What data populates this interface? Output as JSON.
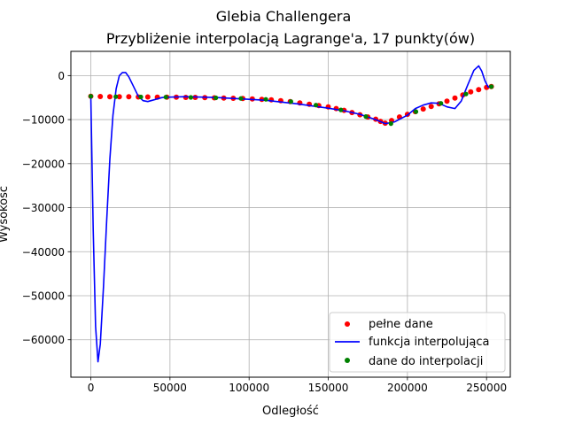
{
  "chart_data": {
    "type": "line",
    "title": "Glebia Challengera",
    "subtitle": "Przybliżenie interpolacją Lagrange'a, 17 punkty(ów)",
    "xlabel": "Odległość",
    "ylabel": "Wysokość",
    "xlim": [
      -12600,
      265000
    ],
    "ylim": [
      -68500,
      5500
    ],
    "x_ticks": [
      0,
      50000,
      100000,
      150000,
      200000,
      250000
    ],
    "x_tick_labels": [
      "0",
      "50000",
      "100000",
      "150000",
      "200000",
      "250000"
    ],
    "y_ticks": [
      0,
      -10000,
      -20000,
      -30000,
      -40000,
      -50000,
      -60000
    ],
    "y_tick_labels": [
      "0",
      "−10000",
      "−20000",
      "−30000",
      "−40000",
      "−50000",
      "−60000"
    ],
    "grid": true,
    "legend_position": "lower-right",
    "series": [
      {
        "name": "pełne dane",
        "kind": "scatter",
        "color": "#ff0000",
        "x": [
          0,
          6000,
          12000,
          18000,
          24000,
          30000,
          36000,
          42000,
          48000,
          54000,
          60000,
          66000,
          72000,
          78000,
          84000,
          90000,
          96000,
          102000,
          108000,
          114000,
          120000,
          126000,
          132000,
          138000,
          144000,
          150000,
          155000,
          160000,
          165000,
          170000,
          175000,
          180000,
          183000,
          186000,
          190000,
          195000,
          200000,
          205000,
          210000,
          215000,
          220000,
          225000,
          230000,
          235000,
          240000,
          245000,
          250000,
          253000
        ],
        "y": [
          -4700,
          -4750,
          -4800,
          -4800,
          -4800,
          -4850,
          -4850,
          -4900,
          -4900,
          -4900,
          -4950,
          -4950,
          -5000,
          -5050,
          -5100,
          -5150,
          -5200,
          -5300,
          -5400,
          -5500,
          -5700,
          -5900,
          -6200,
          -6500,
          -6800,
          -7100,
          -7500,
          -7900,
          -8400,
          -8900,
          -9400,
          -9900,
          -10400,
          -10800,
          -10200,
          -9400,
          -8800,
          -8200,
          -7600,
          -7000,
          -6400,
          -5800,
          -5100,
          -4400,
          -3700,
          -3200,
          -2700,
          -2500
        ]
      },
      {
        "name": "funkcja interpolująca",
        "kind": "line",
        "color": "#0000ff",
        "x": [
          0,
          1500,
          3000,
          4500,
          6000,
          8000,
          10000,
          12000,
          14000,
          16000,
          18000,
          20000,
          22000,
          24000,
          27000,
          30000,
          33000,
          36000,
          40000,
          45000,
          50000,
          60000,
          70000,
          80000,
          90000,
          100000,
          110000,
          120000,
          130000,
          140000,
          150000,
          160000,
          170000,
          180000,
          186000,
          192000,
          200000,
          205000,
          210000,
          215000,
          220000,
          225000,
          230000,
          234000,
          238000,
          242000,
          245000,
          247000,
          249000,
          251000,
          253000
        ],
        "y": [
          -4700,
          -35000,
          -57000,
          -65000,
          -61000,
          -48000,
          -33000,
          -19000,
          -9000,
          -3000,
          0,
          700,
          700,
          -300,
          -2500,
          -4700,
          -5700,
          -5900,
          -5500,
          -5000,
          -4900,
          -4800,
          -4900,
          -5000,
          -5200,
          -5400,
          -5600,
          -6000,
          -6400,
          -6900,
          -7400,
          -8000,
          -8800,
          -10000,
          -10900,
          -10500,
          -9000,
          -7500,
          -6700,
          -6200,
          -6300,
          -7100,
          -7500,
          -5800,
          -2200,
          1200,
          2200,
          1000,
          -1200,
          -2600,
          -2500
        ]
      },
      {
        "name": "dane do interpolacji",
        "kind": "scatter",
        "color": "#008000",
        "x": [
          0,
          15800,
          31600,
          47400,
          63200,
          79000,
          94800,
          110600,
          126400,
          142200,
          158000,
          173800,
          189600,
          205400,
          221200,
          237000,
          253000
        ],
        "y": [
          -4700,
          -4800,
          -4850,
          -4900,
          -4950,
          -5050,
          -5200,
          -5400,
          -5900,
          -6700,
          -7800,
          -9300,
          -10900,
          -8200,
          -6300,
          -4200,
          -2500
        ]
      }
    ]
  }
}
